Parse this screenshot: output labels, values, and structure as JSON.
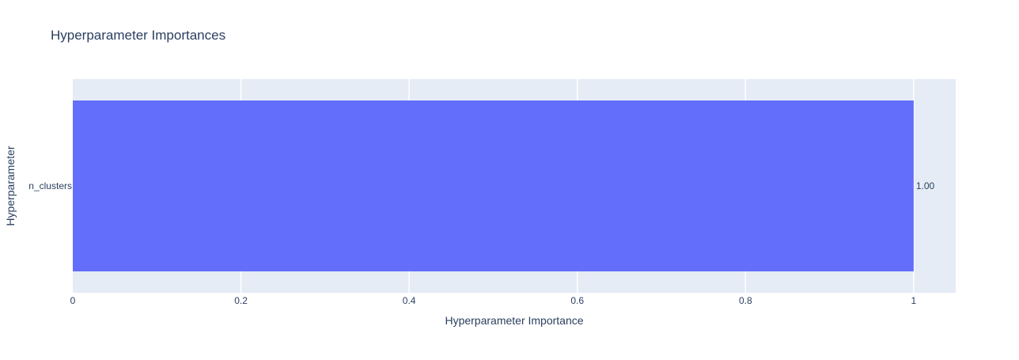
{
  "chart_data": {
    "type": "bar",
    "orientation": "horizontal",
    "title": "Hyperparameter Importances",
    "xlabel": "Hyperparameter Importance",
    "ylabel": "Hyperparameter",
    "categories": [
      "n_clusters"
    ],
    "values": [
      1.0
    ],
    "value_labels": [
      "1.00"
    ],
    "xlim": [
      0,
      1.05
    ],
    "xticks": [
      0,
      0.2,
      0.4,
      0.6,
      0.8,
      1
    ],
    "xtick_labels": [
      "0",
      "0.2",
      "0.4",
      "0.6",
      "0.8",
      "1"
    ],
    "grid": true,
    "colors": {
      "bar": "#636efa",
      "plot_background": "#e5ecf6",
      "grid": "#ffffff",
      "text": "#2a3f5f"
    }
  }
}
